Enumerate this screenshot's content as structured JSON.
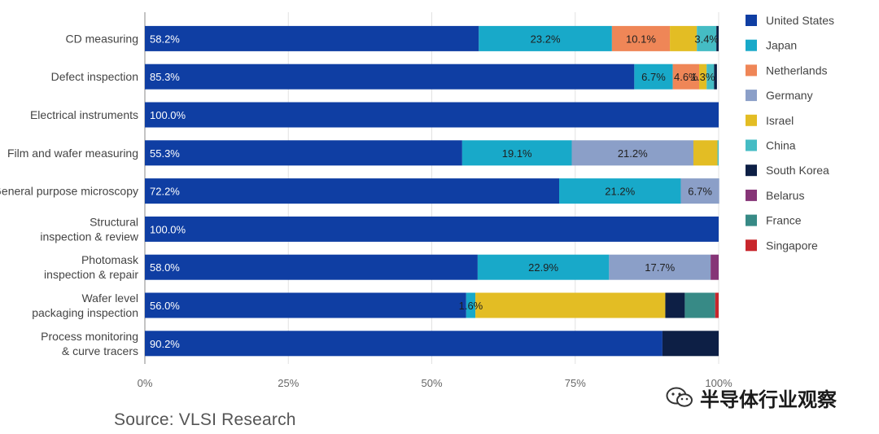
{
  "chart_data": {
    "type": "bar",
    "orientation": "horizontal",
    "stacked": true,
    "categories": [
      "CD measuring",
      "Defect inspection",
      "Electrical instruments",
      "Film and wafer measuring",
      "General purpose microscopy",
      "Structural inspection & review",
      "Photomask inspection & repair",
      "Wafer level packaging inspection",
      "Process monitoring & curve tracers"
    ],
    "series": [
      {
        "name": "United States",
        "color": "#0f3ea3",
        "values": [
          58.2,
          85.3,
          100.0,
          55.3,
          72.2,
          100.0,
          58.0,
          56.0,
          90.2
        ]
      },
      {
        "name": "Japan",
        "color": "#18a9c9",
        "values": [
          23.2,
          6.7,
          0,
          19.1,
          21.2,
          0,
          22.9,
          1.6,
          0
        ]
      },
      {
        "name": "Netherlands",
        "color": "#ef8657",
        "values": [
          10.1,
          4.6,
          0,
          0,
          0,
          0,
          0,
          0,
          0
        ]
      },
      {
        "name": "Germany",
        "color": "#8b9fc8",
        "values": [
          0,
          0,
          0,
          21.2,
          6.7,
          0,
          17.7,
          0,
          0
        ]
      },
      {
        "name": "Israel",
        "color": "#e3bd24",
        "values": [
          4.7,
          1.3,
          0,
          4.2,
          0,
          0,
          0,
          33.1,
          0
        ]
      },
      {
        "name": "China",
        "color": "#45bcc4",
        "values": [
          3.4,
          1.3,
          0,
          0.2,
          0,
          0,
          0,
          0,
          0
        ]
      },
      {
        "name": "South Korea",
        "color": "#0d1f45",
        "values": [
          0.4,
          0.5,
          0,
          0,
          0,
          0,
          0,
          3.4,
          9.8
        ]
      },
      {
        "name": "Belarus",
        "color": "#863577",
        "values": [
          0,
          0,
          0,
          0,
          0,
          0,
          1.4,
          0,
          0
        ]
      },
      {
        "name": "France",
        "color": "#378a86",
        "values": [
          0,
          0,
          0,
          0,
          0,
          0,
          0,
          5.3,
          0
        ]
      },
      {
        "name": "Singapore",
        "color": "#c8262c",
        "values": [
          0,
          0,
          0,
          0,
          0,
          0,
          0,
          0.6,
          0
        ]
      }
    ],
    "data_labels": [
      [
        "58.2%",
        "23.2%",
        "10.1%",
        "",
        "",
        "3.4%",
        "",
        "",
        "",
        ""
      ],
      [
        "85.3%",
        "6.7%",
        "4.6%",
        "",
        "1.3%",
        "",
        "",
        "",
        "",
        ""
      ],
      [
        "100.0%",
        "",
        "",
        "",
        "",
        "",
        "",
        "",
        "",
        ""
      ],
      [
        "55.3%",
        "19.1%",
        "",
        "21.2%",
        "",
        "",
        "",
        "",
        "",
        ""
      ],
      [
        "72.2%",
        "21.2%",
        "",
        "6.7%",
        "",
        "",
        "",
        "",
        "",
        ""
      ],
      [
        "100.0%",
        "",
        "",
        "",
        "",
        "",
        "",
        "",
        "",
        ""
      ],
      [
        "58.0%",
        "22.9%",
        "",
        "17.7%",
        "",
        "",
        "",
        "",
        "",
        ""
      ],
      [
        "56.0%",
        "1.6%",
        "",
        "",
        "",
        "",
        "",
        "",
        "",
        ""
      ],
      [
        "90.2%",
        "",
        "",
        "",
        "",
        "",
        "",
        "",
        "",
        ""
      ]
    ],
    "xlim": [
      0,
      100
    ],
    "xticks": [
      "0%",
      "25%",
      "50%",
      "75%",
      "100%"
    ],
    "grid": true,
    "legend_placement": "right"
  },
  "footer": {
    "source": "Source: VLSI Research",
    "watermark": "半导体行业观察"
  }
}
